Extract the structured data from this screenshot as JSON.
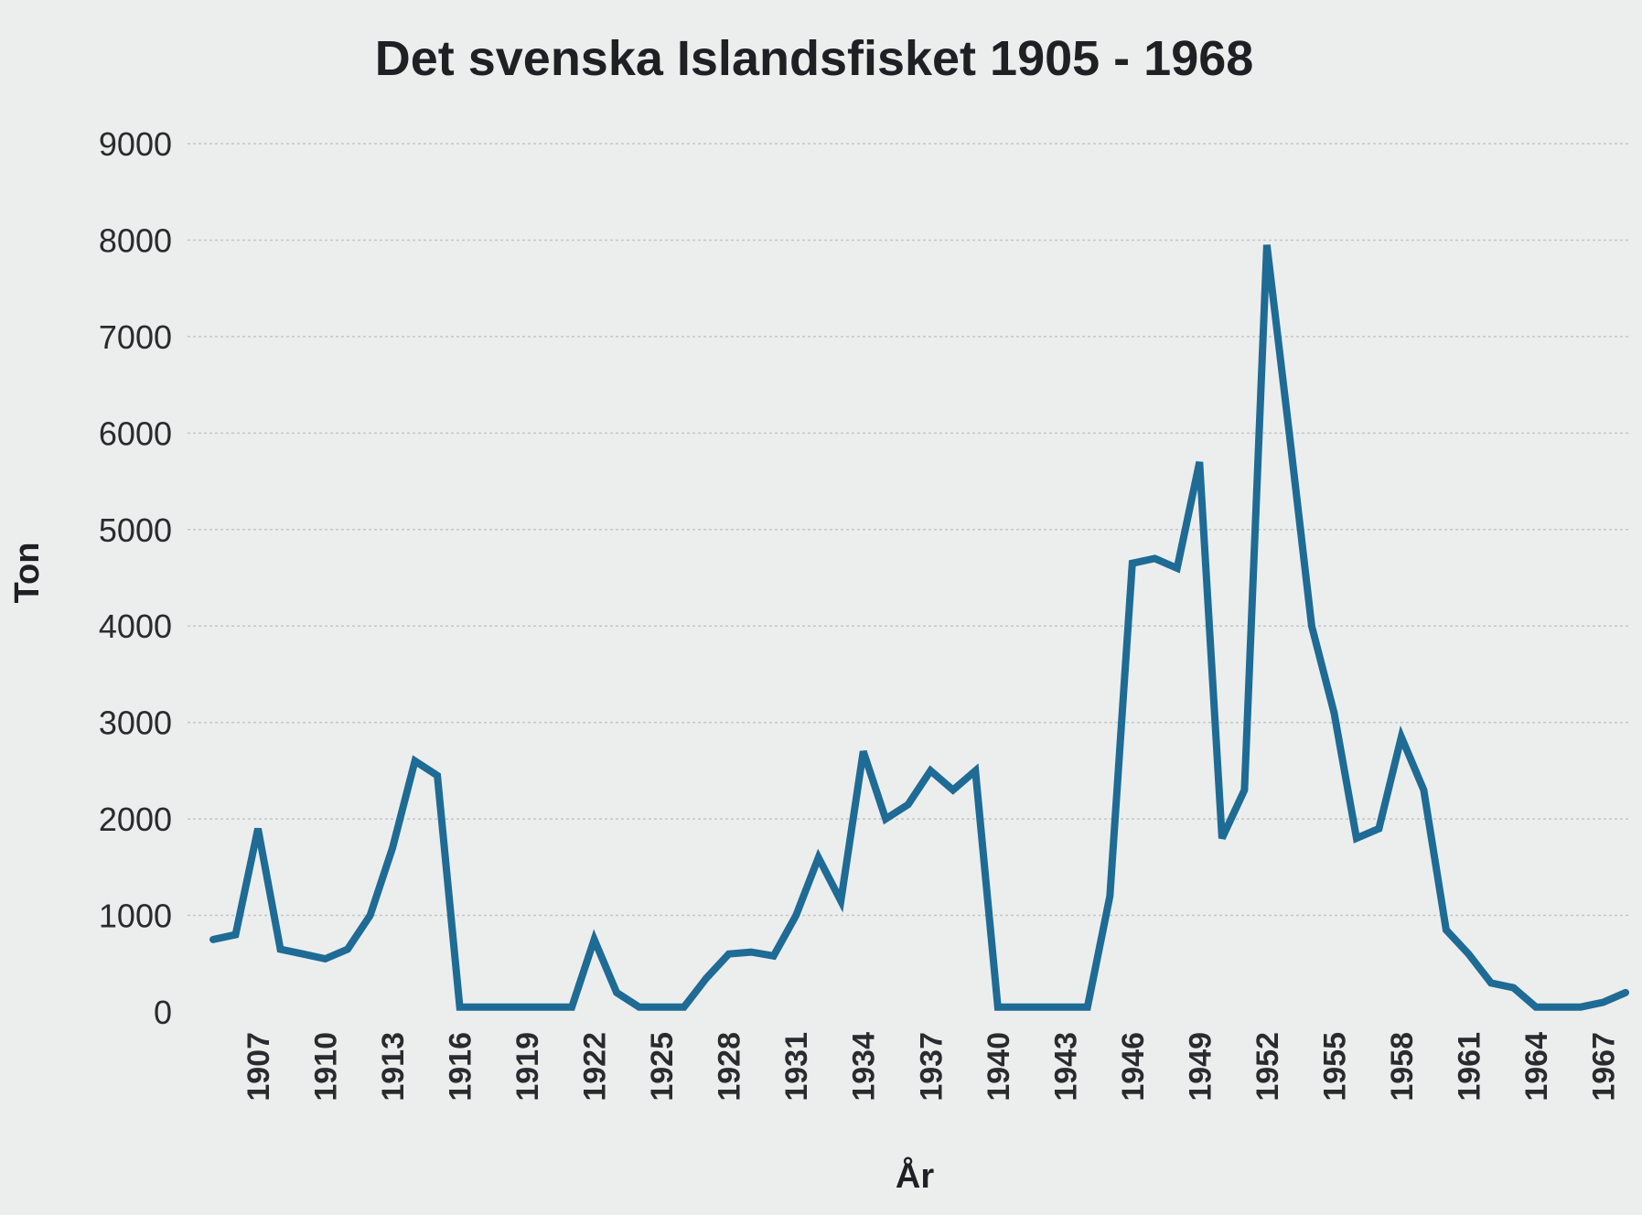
{
  "chart_data": {
    "type": "line",
    "title": "Det svenska Islandsfisket 1905 - 1968",
    "xlabel": "År",
    "ylabel": "Ton",
    "ylim": [
      0,
      9000
    ],
    "yticks": [
      "0",
      "1000",
      "2000",
      "3000",
      "4000",
      "5000",
      "6000",
      "7000",
      "8000",
      "9000"
    ],
    "xticks": [
      "1907",
      "1910",
      "1913",
      "1916",
      "1919",
      "1922",
      "1925",
      "1928",
      "1931",
      "1934",
      "1937",
      "1940",
      "1943",
      "1946",
      "1949",
      "1952",
      "1955",
      "1958",
      "1961",
      "1964",
      "1967"
    ],
    "grid": true,
    "x": [
      1905,
      1906,
      1907,
      1908,
      1909,
      1910,
      1911,
      1912,
      1913,
      1914,
      1915,
      1916,
      1917,
      1918,
      1919,
      1920,
      1921,
      1922,
      1923,
      1924,
      1925,
      1926,
      1927,
      1928,
      1929,
      1930,
      1931,
      1932,
      1933,
      1934,
      1935,
      1936,
      1937,
      1938,
      1939,
      1940,
      1941,
      1942,
      1943,
      1944,
      1945,
      1946,
      1947,
      1948,
      1949,
      1950,
      1951,
      1952,
      1953,
      1954,
      1955,
      1956,
      1957,
      1958,
      1959,
      1960,
      1961,
      1962,
      1963,
      1964,
      1965,
      1966,
      1967,
      1968
    ],
    "series": [
      {
        "values": [
          750,
          800,
          1900,
          650,
          600,
          550,
          650,
          1000,
          1700,
          2600,
          2450,
          50,
          50,
          50,
          50,
          50,
          50,
          750,
          200,
          50,
          50,
          50,
          350,
          600,
          620,
          580,
          1000,
          1600,
          1150,
          2700,
          2000,
          2150,
          2500,
          2300,
          2500,
          50,
          50,
          50,
          50,
          50,
          1200,
          4650,
          4700,
          4600,
          5700,
          1800,
          2300,
          7950,
          6000,
          4000,
          3100,
          1800,
          1900,
          2850,
          2300,
          850,
          600,
          300,
          250,
          50,
          50,
          50,
          100,
          200
        ]
      }
    ]
  }
}
